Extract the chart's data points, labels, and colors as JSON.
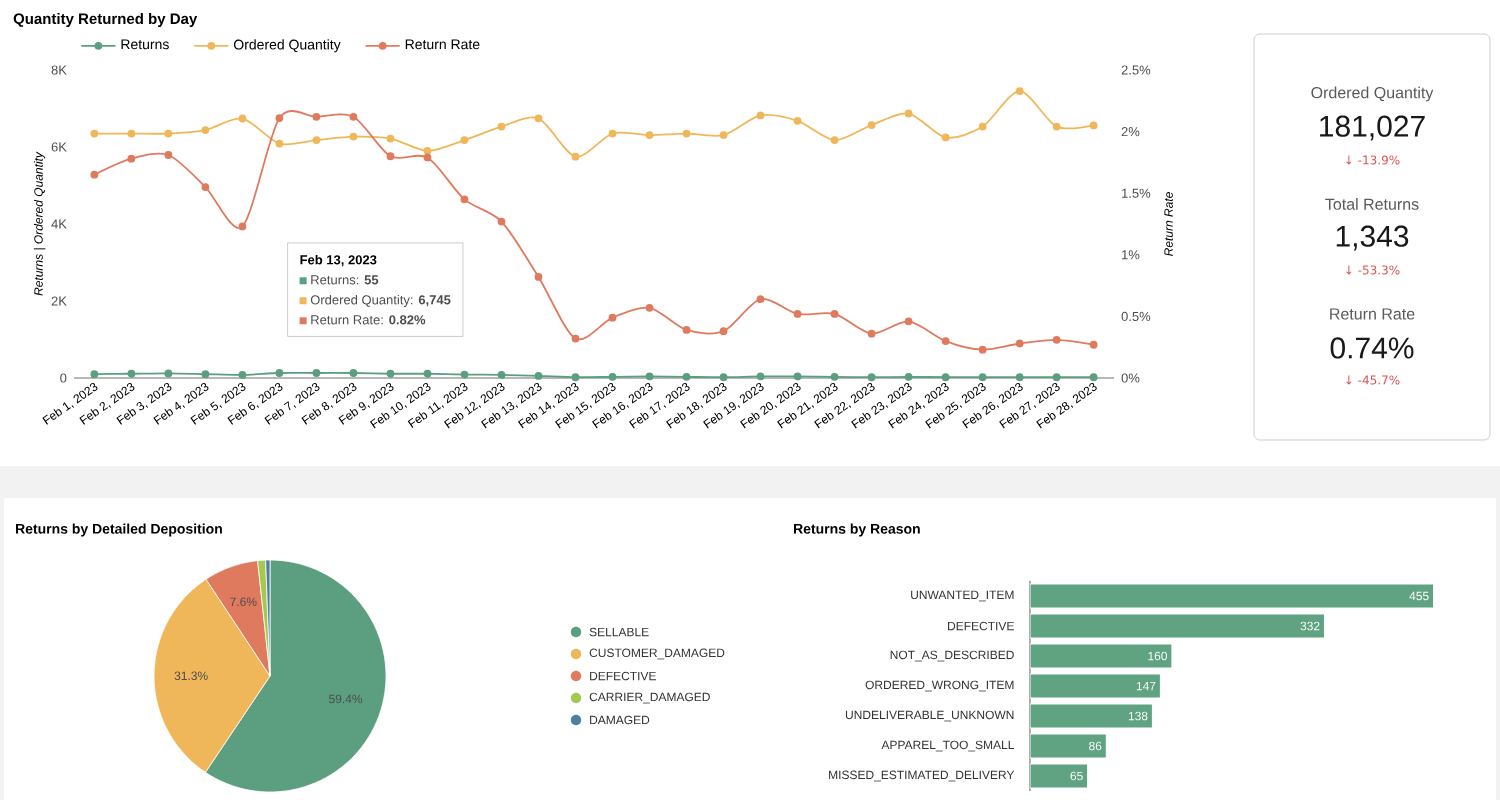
{
  "chart_data": [
    {
      "type": "line",
      "title": "Quantity Returned by Day",
      "ylabel": "Returns | Ordered Quantity",
      "y2label": "Return Rate",
      "categories": [
        "Feb 1, 2023",
        "Feb 2, 2023",
        "Feb 3, 2023",
        "Feb 4, 2023",
        "Feb 5, 2023",
        "Feb 6, 2023",
        "Feb 7, 2023",
        "Feb 8, 2023",
        "Feb 9, 2023",
        "Feb 10, 2023",
        "Feb 11, 2023",
        "Feb 12, 2023",
        "Feb 13, 2023",
        "Feb 14, 2023",
        "Feb 15, 2023",
        "Feb 16, 2023",
        "Feb 17, 2023",
        "Feb 18, 2023",
        "Feb 19, 2023",
        "Feb 20, 2023",
        "Feb 21, 2023",
        "Feb 22, 2023",
        "Feb 23, 2023",
        "Feb 24, 2023",
        "Feb 25, 2023",
        "Feb 26, 2023",
        "Feb 27, 2023",
        "Feb 28, 2023"
      ],
      "series": [
        {
          "name": "Returns",
          "color": "#5b9e80",
          "values": [
            100,
            110,
            120,
            100,
            80,
            130,
            130,
            130,
            110,
            110,
            90,
            80,
            55,
            20,
            30,
            40,
            30,
            20,
            40,
            40,
            30,
            20,
            30,
            20,
            20,
            20,
            20,
            20
          ]
        },
        {
          "name": "Ordered Quantity",
          "color": "#f0b75a",
          "values": [
            6350,
            6350,
            6350,
            6440,
            6740,
            6090,
            6180,
            6270,
            6220,
            5900,
            6180,
            6530,
            6745,
            5750,
            6350,
            6310,
            6350,
            6310,
            6820,
            6680,
            6180,
            6570,
            6870,
            6250,
            6530,
            7450,
            6530,
            6560
          ]
        },
        {
          "name": "Return Rate",
          "color": "#e07a5f",
          "axis": "y2",
          "values": [
            1.65,
            1.78,
            1.81,
            1.55,
            1.23,
            2.11,
            2.12,
            2.12,
            1.8,
            1.79,
            1.45,
            1.27,
            0.82,
            0.32,
            0.49,
            0.57,
            0.39,
            0.38,
            0.64,
            0.52,
            0.52,
            0.36,
            0.46,
            0.3,
            0.23,
            0.28,
            0.31,
            0.27
          ]
        }
      ],
      "ylim": [
        0,
        8000
      ],
      "yticks": [
        0,
        {
          "value": 2000,
          "label": "2K"
        },
        {
          "value": 4000,
          "label": "4K"
        },
        {
          "value": 6000,
          "label": "6K"
        },
        {
          "value": 8000,
          "label": "8K"
        }
      ],
      "y2lim": [
        0,
        2.5
      ],
      "y2ticks": [
        {
          "value": 0,
          "label": "0%"
        },
        {
          "value": 0.5,
          "label": "0.5%"
        },
        {
          "value": 1,
          "label": "1%"
        },
        {
          "value": 1.5,
          "label": "1.5%"
        },
        {
          "value": 2,
          "label": "2%"
        },
        {
          "value": 2.5,
          "label": "2.5%"
        }
      ],
      "marker": "circle",
      "legend": "top left",
      "annotations": [
        "**Feb 13, 2023**",
        "Returns: **55**",
        "Ordered Quantity: **6,745**",
        "Return Rate: **0.82%**"
      ]
    },
    {
      "type": "other",
      "annotations": [
        "Ordered Quantity",
        "181,027",
        "↓ -13.9%",
        "Total Returns",
        "1,343",
        "↓ -53.3%",
        "Return Rate",
        "0.74%",
        "↓ -45.7%"
      ]
    },
    {
      "type": "pie",
      "title": "Returns by Detailed Deposition",
      "categories": [
        "SELLABLE",
        "CUSTOMER_DAMAGED",
        "DEFECTIVE",
        "CARRIER_DAMAGED",
        "DAMAGED"
      ],
      "values": [
        59.4,
        31.3,
        7.6,
        1.1,
        0.6
      ],
      "colors": [
        "#5b9e80",
        "#f0b75a",
        "#e07a5f",
        "#a5c94f",
        "#4f7fa0"
      ],
      "value_labels": [
        "59.4%",
        "31.3%",
        "7.6%",
        null,
        null
      ],
      "legend": "right"
    },
    {
      "type": "bar",
      "orientation": "horizontal",
      "title": "Returns by Reason",
      "categories": [
        "UNWANTED_ITEM",
        "DEFECTIVE",
        "NOT_AS_DESCRIBED",
        "ORDERED_WRONG_ITEM",
        "UNDELIVERABLE_UNKNOWN",
        "APPAREL_TOO_SMALL",
        "MISSED_ESTIMATED_DELIVERY"
      ],
      "values": [
        455,
        332,
        160,
        147,
        138,
        86,
        65
      ],
      "color": "#5fa383",
      "data_labels": true
    }
  ]
}
